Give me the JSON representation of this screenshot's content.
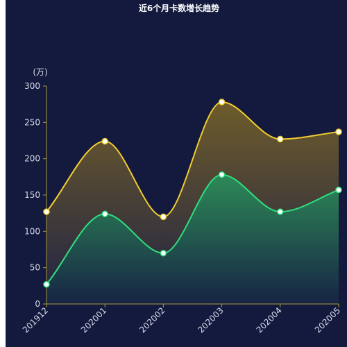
{
  "chart_data": {
    "type": "area",
    "title": "近6个月卡数增长趋势",
    "y_unit": "(万)",
    "categories": [
      "201912",
      "202001",
      "202002",
      "202003",
      "202004",
      "202005"
    ],
    "ylim": [
      0,
      300
    ],
    "yticks": [
      0,
      50,
      100,
      150,
      200,
      250,
      300
    ],
    "ytick_labels": [
      "0",
      "50",
      "100",
      "150",
      "200",
      "250",
      "300"
    ],
    "smooth": true,
    "grid": false,
    "legend": "none",
    "series": [
      {
        "values": [
          127,
          224,
          120,
          278,
          227,
          237
        ],
        "color": "#f2cc2e",
        "fill_top": "#6e5c2b",
        "fill_bottom": "#1f2244"
      },
      {
        "values": [
          27,
          124,
          70,
          178,
          127,
          157
        ],
        "color": "#2ee07e",
        "fill_top": "#2d8a57",
        "fill_bottom": "#172444"
      }
    ],
    "axis_color": "#a79a3f",
    "marker_fill": "#ffffff"
  }
}
